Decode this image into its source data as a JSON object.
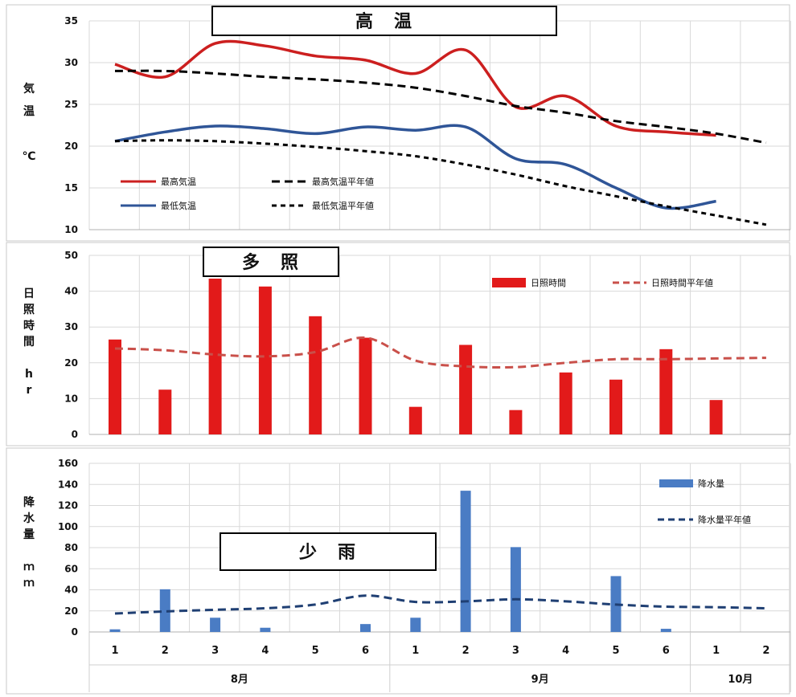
{
  "chart_data": [
    {
      "type": "line",
      "title": "高　温",
      "ylabel": [
        "気",
        "温",
        "",
        "℃"
      ],
      "ylim": [
        10,
        35
      ],
      "yticks": [
        10,
        15,
        20,
        25,
        30,
        35
      ],
      "x": [
        1,
        2,
        3,
        4,
        5,
        6,
        7,
        8,
        9,
        10,
        11,
        12,
        13,
        14
      ],
      "series": [
        {
          "name": "最高気温",
          "color": "#cc1f1f",
          "style": "solid",
          "values": [
            29.8,
            28.3,
            32.3,
            32.0,
            30.8,
            30.3,
            28.7,
            31.5,
            24.7,
            26.0,
            22.4,
            21.7,
            21.3,
            null
          ]
        },
        {
          "name": "最低気温",
          "color": "#2f5597",
          "style": "solid",
          "values": [
            20.6,
            21.7,
            22.4,
            22.1,
            21.5,
            22.3,
            21.9,
            22.3,
            18.5,
            17.8,
            15.0,
            12.6,
            13.4,
            null
          ]
        },
        {
          "name": "最高気温平年値",
          "color": "#000000",
          "style": "dashed",
          "values": [
            29.0,
            29.0,
            28.7,
            28.3,
            28.0,
            27.6,
            27.0,
            26.0,
            24.8,
            24.0,
            23.0,
            22.3,
            21.5,
            20.4
          ]
        },
        {
          "name": "最低気温平年値",
          "color": "#000000",
          "style": "dotted",
          "values": [
            20.6,
            20.7,
            20.6,
            20.3,
            19.9,
            19.4,
            18.8,
            17.8,
            16.6,
            15.2,
            14.0,
            12.8,
            11.7,
            10.6
          ]
        }
      ]
    },
    {
      "type": "bar",
      "title": "多　照",
      "ylabel": [
        "日",
        "照",
        "時",
        "間",
        "",
        "h",
        "r"
      ],
      "ylim": [
        0,
        50
      ],
      "yticks": [
        0,
        10,
        20,
        30,
        40,
        50
      ],
      "x": [
        1,
        2,
        3,
        4,
        5,
        6,
        7,
        8,
        9,
        10,
        11,
        12,
        13,
        14
      ],
      "series": [
        {
          "name": "日照時間",
          "color": "#e21a1a",
          "kind": "bar",
          "values": [
            26.5,
            12.5,
            43.5,
            41.3,
            33.0,
            27.0,
            7.7,
            25.0,
            6.8,
            17.3,
            15.3,
            23.8,
            9.6,
            null
          ]
        },
        {
          "name": "日照時間平年値",
          "color": "#c9504a",
          "kind": "dashed",
          "values": [
            24.0,
            23.5,
            22.3,
            21.8,
            23.0,
            27.0,
            20.6,
            19.0,
            18.8,
            20.0,
            21.0,
            21.0,
            21.2,
            21.4
          ]
        }
      ]
    },
    {
      "type": "bar",
      "title": "少　雨",
      "ylabel": [
        "降",
        "水",
        "量",
        "",
        "ｍ",
        "ｍ"
      ],
      "ylim": [
        0,
        160
      ],
      "yticks": [
        0,
        20,
        40,
        60,
        80,
        100,
        120,
        140,
        160
      ],
      "x": [
        1,
        2,
        3,
        4,
        5,
        6,
        7,
        8,
        9,
        10,
        11,
        12,
        13,
        14
      ],
      "categories": [
        "1",
        "2",
        "3",
        "4",
        "5",
        "6",
        "1",
        "2",
        "3",
        "4",
        "5",
        "6",
        "1",
        "2"
      ],
      "groups": [
        {
          "label": "8月",
          "from": 1,
          "to": 6
        },
        {
          "label": "9月",
          "from": 7,
          "to": 12
        },
        {
          "label": "10月",
          "from": 13,
          "to": 14
        }
      ],
      "series": [
        {
          "name": "降水量",
          "color": "#4a7cc4",
          "kind": "bar",
          "values": [
            2.5,
            40.5,
            13.5,
            4.0,
            0,
            7.5,
            13.5,
            134.0,
            80.5,
            0,
            53.0,
            3.0,
            0,
            0
          ]
        },
        {
          "name": "降水量平年値",
          "color": "#1f3f73",
          "kind": "dashed",
          "values": [
            17.5,
            19.5,
            21.0,
            22.5,
            26.0,
            34.5,
            28.5,
            29.0,
            31.0,
            29.0,
            26.0,
            24.0,
            23.5,
            22.5
          ]
        }
      ]
    }
  ]
}
